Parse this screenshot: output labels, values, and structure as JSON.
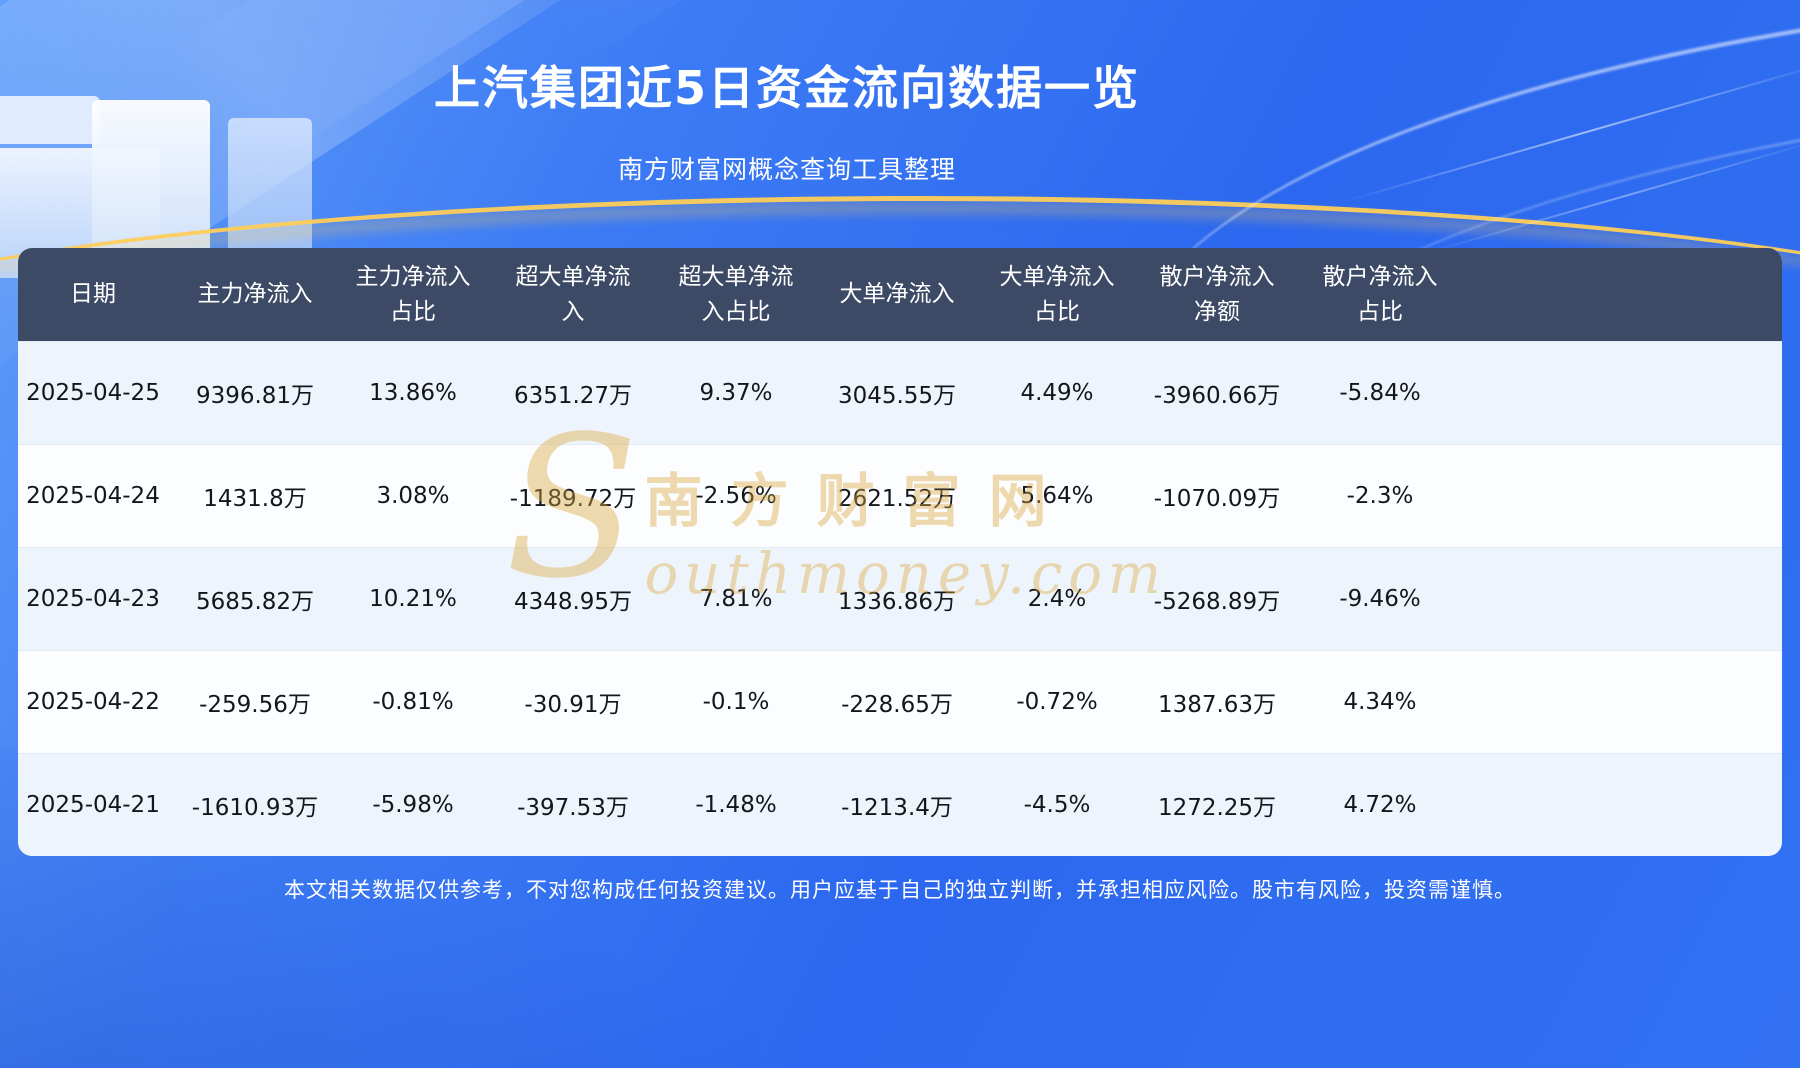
{
  "page": {
    "title": "上汽集团近5日资金流向数据一览",
    "subtitle": "南方财富网概念查询工具整理",
    "footer": "本文相关数据仅供参考，不对您构成任何投资建议。用户应基于自己的独立判断，并承担相应风险。股市有风险，投资需谨慎。"
  },
  "watermark": {
    "big_letter": "S",
    "brand": "南方财富网",
    "domain": "outhmoney.com"
  },
  "colors": {
    "background_blue": "#2f6ef0",
    "header_bg": "#3d4a66",
    "row_blue": "#eef4fb",
    "row_white": "#fbfdff",
    "accent_gold": "#e8b45a",
    "text_dark": "#14161c",
    "text_white": "#ffffff"
  },
  "table": {
    "header_display": [
      "日期",
      "主力净流入",
      "主力净流入\n占比",
      "超大单净流\n入",
      "超大单净流\n入占比",
      "大单净流入",
      "大单净流入\n占比",
      "散户净流入\n净额",
      "散户净流入\n占比"
    ]
  },
  "chart_data": {
    "type": "table",
    "title": "上汽集团近5日资金流向数据一览",
    "columns": [
      "日期",
      "主力净流入",
      "主力净流入占比",
      "超大单净流入",
      "超大单净流入占比",
      "大单净流入",
      "大单净流入占比",
      "散户净流入净额",
      "散户净流入占比"
    ],
    "rows": [
      [
        "2025-04-25",
        "9396.81万",
        "13.86%",
        "6351.27万",
        "9.37%",
        "3045.55万",
        "4.49%",
        "-3960.66万",
        "-5.84%"
      ],
      [
        "2025-04-24",
        "1431.8万",
        "3.08%",
        "-1189.72万",
        "-2.56%",
        "2621.52万",
        "5.64%",
        "-1070.09万",
        "-2.3%"
      ],
      [
        "2025-04-23",
        "5685.82万",
        "10.21%",
        "4348.95万",
        "7.81%",
        "1336.86万",
        "2.4%",
        "-5268.89万",
        "-9.46%"
      ],
      [
        "2025-04-22",
        "-259.56万",
        "-0.81%",
        "-30.91万",
        "-0.1%",
        "-228.65万",
        "-0.72%",
        "1387.63万",
        "4.34%"
      ],
      [
        "2025-04-21",
        "-1610.93万",
        "-5.98%",
        "-397.53万",
        "-1.48%",
        "-1213.4万",
        "-4.5%",
        "1272.25万",
        "4.72%"
      ]
    ]
  }
}
